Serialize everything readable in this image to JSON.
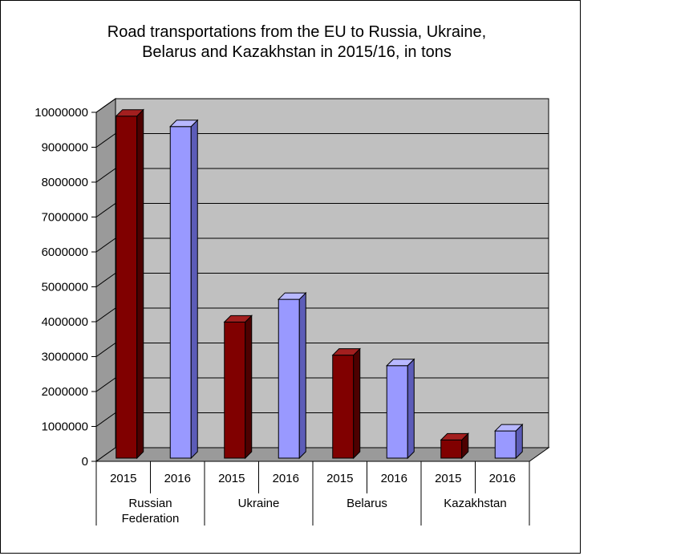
{
  "chart_data": {
    "type": "bar",
    "title_lines": [
      "Road transportations from the EU to Russia, Ukraine,",
      "Belarus and Kazakhstan in 2015/16, in tons"
    ],
    "groups": [
      {
        "label_lines": [
          "Russian",
          "Federation"
        ],
        "years": [
          "2015",
          "2016"
        ],
        "values": [
          9800000,
          9500000
        ]
      },
      {
        "label_lines": [
          "Ukraine"
        ],
        "years": [
          "2015",
          "2016"
        ],
        "values": [
          3900000,
          4550000
        ]
      },
      {
        "label_lines": [
          "Belarus"
        ],
        "years": [
          "2015",
          "2016"
        ],
        "values": [
          2950000,
          2650000
        ]
      },
      {
        "label_lines": [
          "Kazakhstan"
        ],
        "years": [
          "2015",
          "2016"
        ],
        "values": [
          520000,
          780000
        ]
      }
    ],
    "ylim": [
      0,
      10000000
    ],
    "yticks": [
      0,
      1000000,
      2000000,
      3000000,
      4000000,
      5000000,
      6000000,
      7000000,
      8000000,
      9000000,
      10000000
    ],
    "grid": true,
    "colors": {
      "2015": {
        "front": "#800000",
        "side": "#4d0000",
        "top": "#a31f1f"
      },
      "2016": {
        "front": "#9999ff",
        "side": "#5c5cb8",
        "top": "#b8b8ff"
      },
      "wall": "#c0c0c0",
      "floor": "#9a9a9a"
    }
  }
}
